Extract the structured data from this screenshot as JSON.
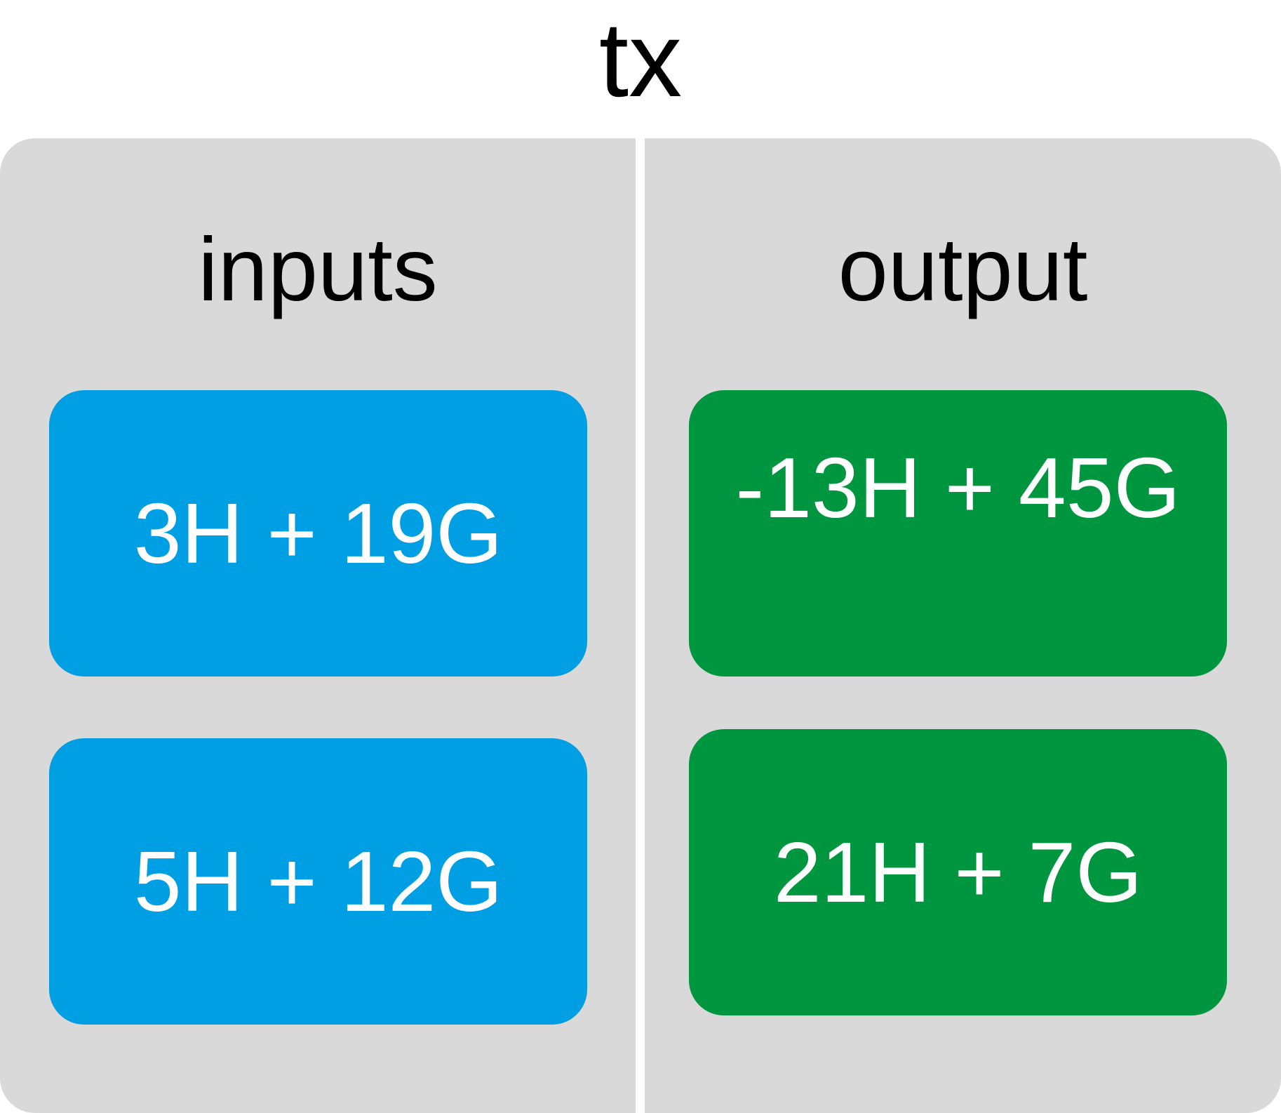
{
  "title": "tx",
  "columns": {
    "inputs": {
      "heading": "inputs",
      "items": [
        {
          "label": "3H + 19G"
        },
        {
          "label": "5H + 12G"
        }
      ]
    },
    "output": {
      "heading": "output",
      "items": [
        {
          "label": "-13H + 45G"
        },
        {
          "label": "21H + 7G"
        }
      ]
    }
  },
  "colors": {
    "panel": "#d9d9d9",
    "input_box": "#009ee2",
    "output_box": "#009640",
    "box_text": "#ffffff"
  }
}
